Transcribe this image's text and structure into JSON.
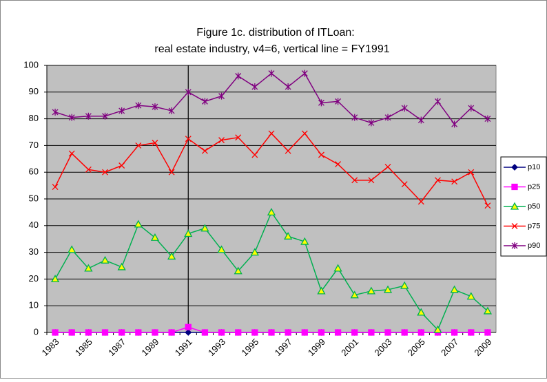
{
  "chart_data": {
    "type": "line",
    "title": "Figure 1c. distribution of ITLoan:",
    "subtitle": "real estate industry, v4=6, vertical line = FY1991",
    "categories": [
      "1983",
      null,
      "1985",
      null,
      "1987",
      null,
      "1989",
      null,
      "1991",
      null,
      "1993",
      null,
      "1995",
      null,
      "1997",
      null,
      "1999",
      null,
      "2001",
      null,
      "2003",
      null,
      "2005",
      null,
      "2007",
      null,
      "2009"
    ],
    "vertical_line": "1991",
    "ylim": [
      0,
      100
    ],
    "yticks": [
      0,
      10,
      20,
      30,
      40,
      50,
      60,
      70,
      80,
      90,
      100
    ],
    "grid": true,
    "legend": "right",
    "series": [
      {
        "name": "p10",
        "color": "#000080",
        "marker": "diamond",
        "values": [
          0,
          0,
          0,
          0,
          0,
          0,
          0,
          0,
          0,
          0,
          0,
          0,
          0,
          0,
          0,
          0,
          0,
          0,
          0,
          0,
          0,
          0,
          0,
          0,
          0,
          0,
          0
        ]
      },
      {
        "name": "p25",
        "color": "#ff00ff",
        "marker": "square",
        "values": [
          0,
          0,
          0,
          0,
          0,
          0,
          0,
          0,
          2,
          0,
          0,
          0,
          0,
          0,
          0,
          0,
          0,
          0,
          0,
          0,
          0,
          0,
          0,
          0,
          0,
          0,
          0
        ]
      },
      {
        "name": "p50",
        "color": "#00b050",
        "marker": "triangle",
        "values": [
          20,
          31,
          24,
          27,
          24.5,
          40.5,
          35.5,
          28.5,
          37,
          39,
          31,
          23,
          30,
          45,
          36,
          34,
          15.5,
          24,
          14,
          15.5,
          16,
          17.5,
          7.5,
          1,
          16,
          13.5,
          8
        ]
      },
      {
        "name": "p75",
        "color": "#ff0000",
        "marker": "x",
        "values": [
          54.5,
          67,
          61,
          60,
          62.5,
          70,
          71,
          60,
          72.5,
          68,
          72,
          73,
          66.5,
          74.5,
          68,
          74.5,
          66.5,
          63,
          57,
          57,
          62,
          55.5,
          49,
          57,
          56.5,
          60,
          47.5
        ]
      },
      {
        "name": "p90",
        "color": "#800080",
        "marker": "star",
        "values": [
          82.5,
          80.5,
          81,
          81,
          83,
          85,
          84.5,
          83,
          90,
          86.5,
          88.5,
          96,
          92,
          97,
          92,
          97,
          86,
          86.5,
          80.5,
          78.5,
          80.5,
          84,
          79.5,
          86.5,
          78,
          84,
          80
        ]
      }
    ]
  }
}
